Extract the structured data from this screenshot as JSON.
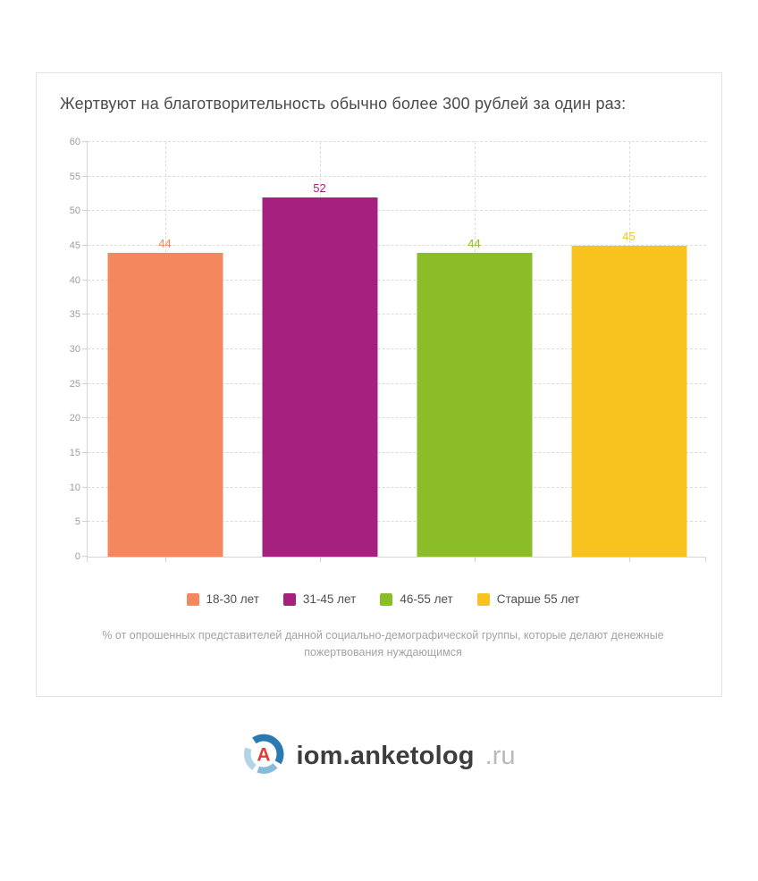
{
  "card": {
    "footnote": "% от опрошенных представителей данной социально-демографической группы, которые делают денежные пожертвования нуждающимся"
  },
  "chart_data": {
    "type": "bar",
    "title": "Жертвуют на благотворительность обычно более 300 рублей за один раз:",
    "categories": [
      "18-30 лет",
      "31-45 лет",
      "46-55 лет",
      "Старше 55 лет"
    ],
    "values": [
      44,
      52,
      44,
      45
    ],
    "colors": [
      "#f4875e",
      "#a6217f",
      "#8bbd28",
      "#f9c31f"
    ],
    "xlabel": "",
    "ylabel": "",
    "ylim": [
      0,
      60
    ],
    "ytick_step": 5,
    "grid": true,
    "legend_position": "bottom"
  },
  "footer": {
    "logo_text_primary": "iom.anketolog",
    "logo_text_suffix": ".ru",
    "logo_icon_colors": {
      "dark_blue": "#2a7ab2",
      "mid_blue": "#85bcd8",
      "light_blue": "#b2d5e5",
      "red": "#e23c38"
    }
  }
}
